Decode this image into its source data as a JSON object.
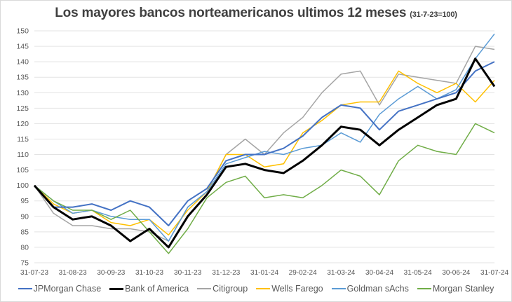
{
  "chart_data": {
    "type": "line",
    "title": "Los mayores bancos norteamericanos ultimos 12 meses",
    "subtitle": "(31-7-23=100)",
    "xlabel": "",
    "ylabel": "",
    "ylim": [
      75,
      150
    ],
    "yticks": [
      75,
      80,
      85,
      90,
      95,
      100,
      105,
      110,
      115,
      120,
      125,
      130,
      135,
      140,
      145,
      150
    ],
    "xtick_labels": [
      "31-07-23",
      "31-08-23",
      "30-09-23",
      "31-10-23",
      "30-11-23",
      "31-12-23",
      "31-01-24",
      "29-02-24",
      "31-03-24",
      "30-04-24",
      "31-05-24",
      "30-06-24",
      "31-07-24"
    ],
    "grid": "horizontal",
    "legend_position": "bottom",
    "x_points": 25,
    "series": [
      {
        "name": "JPMorgan Chase",
        "color": "#4472c4",
        "width": 2,
        "values": [
          100,
          93,
          93,
          94,
          92,
          95,
          93,
          87,
          95,
          99,
          108,
          110,
          110,
          112,
          116,
          122,
          126,
          125,
          118,
          124,
          126,
          128,
          130,
          137,
          140
        ]
      },
      {
        "name": "Bank of America",
        "color": "#000000",
        "width": 3,
        "values": [
          100,
          93,
          89,
          90,
          87,
          82,
          86,
          80,
          90,
          97,
          106,
          107,
          105,
          104,
          108,
          113,
          119,
          118,
          113,
          118,
          122,
          126,
          128,
          141,
          132
        ]
      },
      {
        "name": "Citigroup",
        "color": "#a5a5a5",
        "width": 1.5,
        "values": [
          100,
          91,
          87,
          87,
          86,
          86,
          85,
          82,
          93,
          98,
          110,
          115,
          110,
          117,
          122,
          130,
          136,
          137,
          126,
          136,
          135,
          134,
          133,
          145,
          144
        ]
      },
      {
        "name": "Wells Farego",
        "color": "#ffc000",
        "width": 1.5,
        "values": [
          100,
          94,
          91,
          92,
          88,
          87,
          89,
          84,
          92,
          98,
          110,
          110,
          106,
          107,
          117,
          121,
          126,
          127,
          127,
          137,
          133,
          130,
          133,
          127,
          134
        ]
      },
      {
        "name": "Goldman sAchs",
        "color": "#5b9bd5",
        "width": 1.5,
        "values": [
          100,
          95,
          91,
          92,
          90,
          89,
          89,
          82,
          93,
          98,
          107,
          109,
          111,
          110,
          112,
          113,
          117,
          114,
          123,
          128,
          132,
          128,
          131,
          141,
          149
        ]
      },
      {
        "name": "Morgan Stanley",
        "color": "#70ad47",
        "width": 1.5,
        "values": [
          100,
          95,
          92,
          92,
          89,
          92,
          85,
          78,
          86,
          96,
          101,
          103,
          96,
          97,
          96,
          100,
          105,
          103,
          97,
          108,
          113,
          111,
          110,
          120,
          117
        ]
      }
    ]
  },
  "legend": {
    "items": [
      "JPMorgan Chase",
      "Bank of America",
      "Citigroup",
      "Wells Farego",
      "Goldman sAchs",
      "Morgan Stanley"
    ]
  }
}
